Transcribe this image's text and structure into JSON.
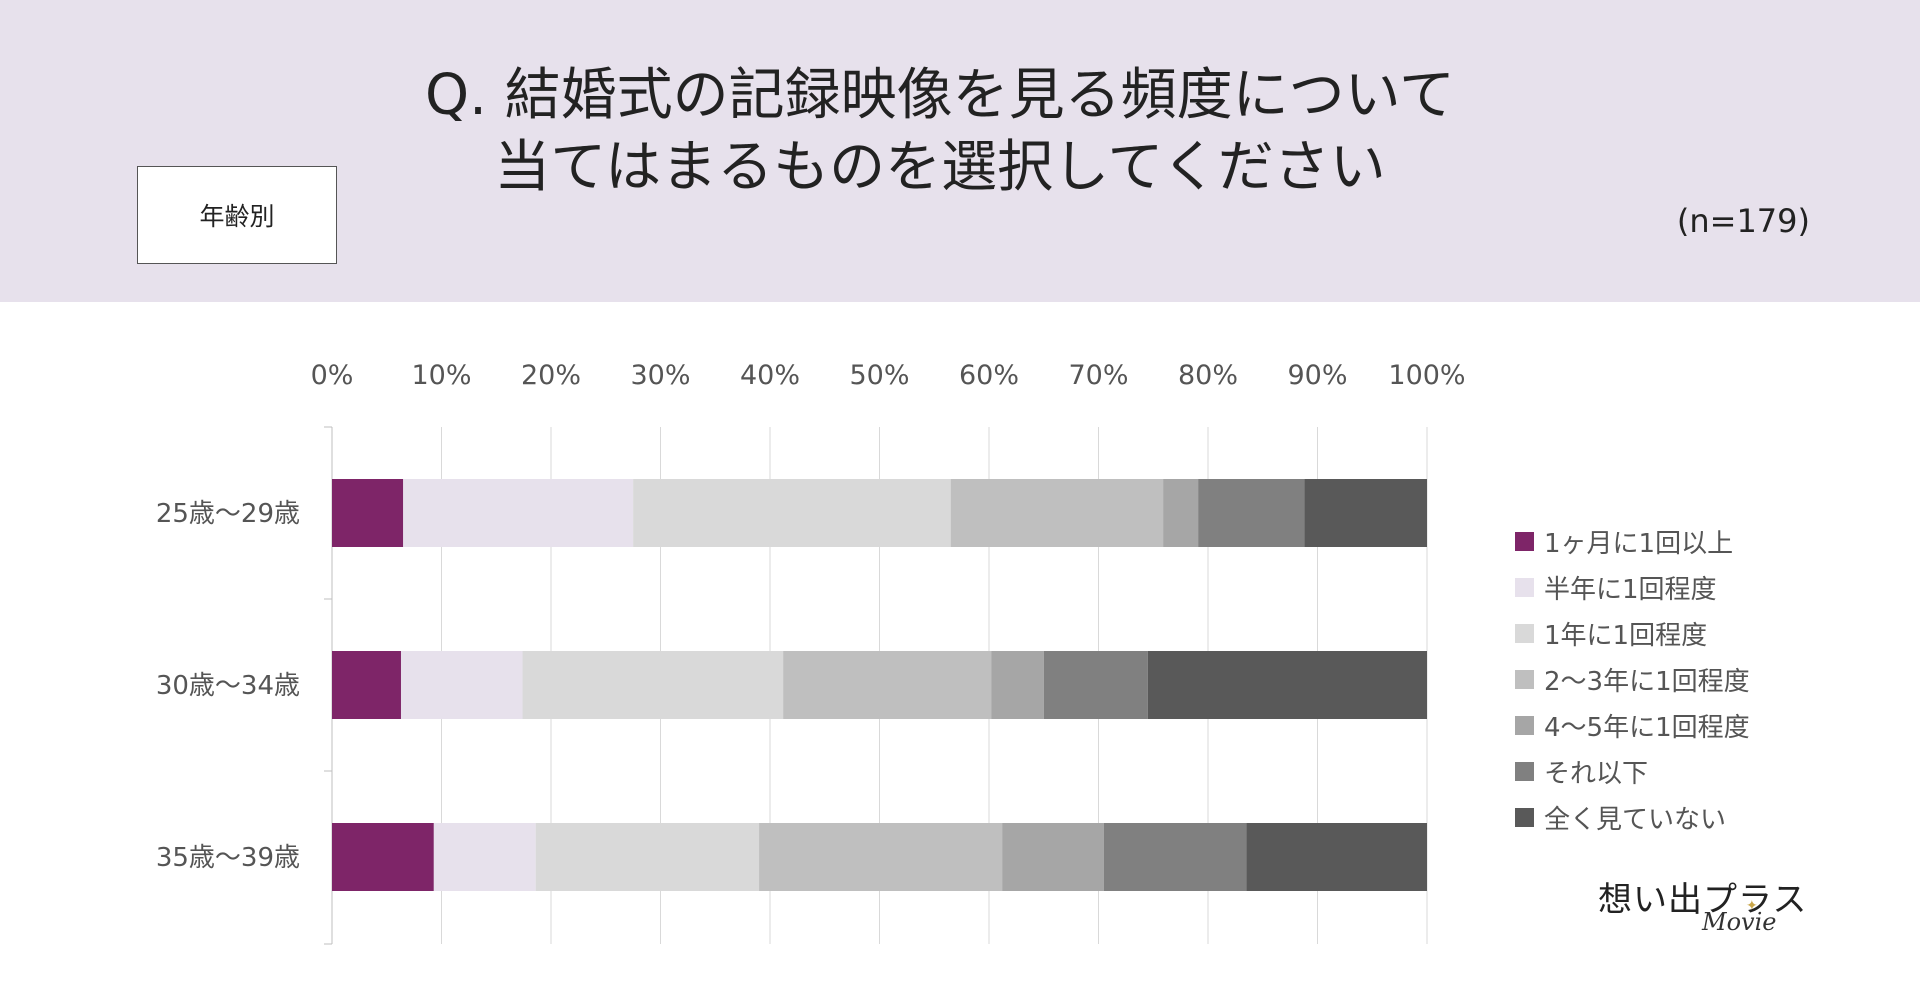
{
  "header": {
    "title_line1": "Q. 結婚式の記録映像を見る頻度について",
    "title_line2": "当てはまるものを選択してください",
    "tag": "年齢別",
    "sample_size": "(n=179)",
    "background_color": "#e7e1ec"
  },
  "logo": {
    "main": "想い出プラス",
    "sub": "Movie",
    "star": "✦"
  },
  "chart_data": {
    "type": "bar",
    "orientation": "horizontal",
    "stacked": true,
    "percent_stacked": true,
    "categories": [
      "25歳〜29歳",
      "30歳〜34歳",
      "35歳〜39歳"
    ],
    "x_ticks": [
      "0%",
      "10%",
      "20%",
      "30%",
      "40%",
      "50%",
      "60%",
      "70%",
      "80%",
      "90%",
      "100%"
    ],
    "xlim": [
      0,
      100
    ],
    "grid": true,
    "legend_position": "right",
    "series": [
      {
        "name": "1ヶ月に1回以上",
        "color": "#7e2568",
        "values": [
          6.5,
          6.3,
          9.3
        ]
      },
      {
        "name": "半年に1回程度",
        "color": "#e7e1ec",
        "values": [
          21.0,
          11.1,
          9.3
        ]
      },
      {
        "name": "1年に1回程度",
        "color": "#d9d9d9",
        "values": [
          29.0,
          23.8,
          20.4
        ]
      },
      {
        "name": "2〜3年に1回程度",
        "color": "#bfbfbf",
        "values": [
          19.4,
          19.0,
          22.2
        ]
      },
      {
        "name": "4〜5年に1回程度",
        "color": "#a6a6a6",
        "values": [
          3.2,
          4.8,
          9.3
        ]
      },
      {
        "name": "それ以下",
        "color": "#808080",
        "values": [
          9.7,
          9.5,
          13.0
        ]
      },
      {
        "name": "全く見ていない",
        "color": "#595959",
        "values": [
          11.2,
          25.5,
          16.5
        ]
      }
    ]
  }
}
